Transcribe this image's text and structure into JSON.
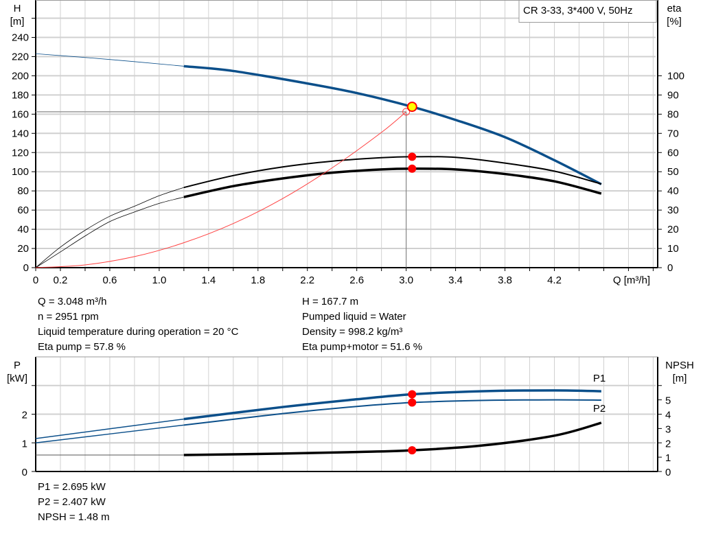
{
  "colors": {
    "head": "#0b4f8a",
    "eta": "#000000",
    "system": "#ff4040",
    "marker": "#ff0000",
    "duty_point_fill": "#ffff00",
    "grid": "#d0d0d0",
    "power": "#0b4f8a",
    "npsh": "#000000"
  },
  "chart_data": [
    {
      "type": "line",
      "legend_box": "CR 3-33, 3*400 V, 50Hz",
      "legend_placement": "top-right",
      "grid": true,
      "xlabel": "Q [m³/h]",
      "xlim": [
        0,
        5.02
      ],
      "x_ticks": [
        "0",
        "0.2",
        "0.6",
        "1.0",
        "1.4",
        "1.8",
        "2.2",
        "2.6",
        "3.0",
        "3.4",
        "3.8",
        "4.2"
      ],
      "y_left": {
        "label": "H",
        "unit": "[m]",
        "lim": [
          0,
          279
        ],
        "ticks": [
          "0",
          "20",
          "40",
          "60",
          "80",
          "100",
          "120",
          "140",
          "160",
          "180",
          "200",
          "220",
          "240"
        ]
      },
      "y_right": {
        "label": "eta",
        "unit": "[%]",
        "lim": [
          0,
          139.5
        ],
        "ticks": [
          "0",
          "10",
          "20",
          "30",
          "40",
          "50",
          "60",
          "70",
          "80",
          "90",
          "100"
        ]
      },
      "series": [
        {
          "key": "H",
          "axis": "left",
          "points": [
            [
              0,
              223
            ],
            [
              0.6,
              217
            ],
            [
              1.2,
              210
            ],
            [
              1.6,
              205
            ],
            [
              2.2,
              192
            ],
            [
              2.6,
              182
            ],
            [
              3.048,
              167.7
            ],
            [
              3.4,
              154
            ],
            [
              3.8,
              136
            ],
            [
              4.2,
              112
            ],
            [
              4.58,
              87
            ]
          ]
        },
        {
          "key": "eta_pump",
          "axis": "right",
          "points": [
            [
              0,
              0
            ],
            [
              0.2,
              10.7
            ],
            [
              0.4,
              19.5
            ],
            [
              0.6,
              26.8
            ],
            [
              0.8,
              32
            ],
            [
              1.0,
              37.5
            ],
            [
              1.2,
              41.8
            ],
            [
              1.6,
              48
            ],
            [
              2.0,
              52.5
            ],
            [
              2.4,
              55.5
            ],
            [
              2.8,
              57.3
            ],
            [
              3.048,
              57.8
            ],
            [
              3.4,
              57.5
            ],
            [
              3.8,
              54.5
            ],
            [
              4.2,
              50.3
            ],
            [
              4.58,
              43.6
            ]
          ]
        },
        {
          "key": "eta_pump_motor",
          "axis": "right",
          "points": [
            [
              0,
              0
            ],
            [
              0.2,
              8.2
            ],
            [
              0.4,
              16.5
            ],
            [
              0.6,
              24
            ],
            [
              0.8,
              29
            ],
            [
              1.0,
              33.5
            ],
            [
              1.2,
              36.8
            ],
            [
              1.6,
              42.5
            ],
            [
              2.0,
              46.5
            ],
            [
              2.4,
              49.5
            ],
            [
              2.8,
              51.2
            ],
            [
              3.048,
              51.6
            ],
            [
              3.4,
              51.2
            ],
            [
              3.8,
              48.8
            ],
            [
              4.2,
              45
            ],
            [
              4.58,
              38.6
            ]
          ]
        },
        {
          "key": "system",
          "axis": "left",
          "points": [
            [
              0,
              0
            ],
            [
              0.4,
              2.9
            ],
            [
              0.8,
              11.5
            ],
            [
              1.2,
              26
            ],
            [
              1.6,
              46
            ],
            [
              2.0,
              72
            ],
            [
              2.4,
              104
            ],
            [
              2.8,
              141
            ],
            [
              3.0,
              162.5
            ]
          ]
        }
      ],
      "duty_point": {
        "q": 3.048,
        "h": 167.7,
        "eta_pump": 57.8,
        "eta_pump_motor": 51.6
      },
      "requested_point": {
        "q": 3.0,
        "h": 162.5
      }
    },
    {
      "type": "line",
      "grid": true,
      "xlim": [
        0,
        5.02
      ],
      "y_left": {
        "label": "P",
        "unit": "[kW]",
        "lim": [
          0,
          4
        ],
        "ticks": [
          "0",
          "1",
          "2"
        ]
      },
      "y_right": {
        "label": "NPSH",
        "unit": "[m]",
        "lim": [
          0,
          8
        ],
        "ticks": [
          "0",
          "1",
          "2",
          "3",
          "4",
          "5"
        ]
      },
      "series": [
        {
          "key": "P1",
          "name": "P1",
          "axis": "left",
          "points": [
            [
              0,
              1.15
            ],
            [
              1.2,
              1.83
            ],
            [
              2.0,
              2.25
            ],
            [
              2.6,
              2.52
            ],
            [
              3.048,
              2.695
            ],
            [
              3.6,
              2.8
            ],
            [
              4.2,
              2.83
            ],
            [
              4.58,
              2.8
            ]
          ]
        },
        {
          "key": "P2",
          "name": "P2",
          "axis": "left",
          "points": [
            [
              0,
              1.0
            ],
            [
              1.2,
              1.62
            ],
            [
              2.0,
              2.02
            ],
            [
              2.6,
              2.27
            ],
            [
              3.048,
              2.407
            ],
            [
              3.6,
              2.48
            ],
            [
              4.2,
              2.5
            ],
            [
              4.58,
              2.49
            ]
          ]
        },
        {
          "key": "NPSH",
          "axis": "right",
          "points": [
            [
              0,
              1.15
            ],
            [
              1.2,
              1.15
            ],
            [
              2.0,
              1.25
            ],
            [
              2.6,
              1.36
            ],
            [
              3.048,
              1.48
            ],
            [
              3.6,
              1.8
            ],
            [
              4.2,
              2.5
            ],
            [
              4.58,
              3.4
            ]
          ]
        }
      ],
      "duty_point": {
        "q": 3.048,
        "p1": 2.695,
        "p2": 2.407,
        "npsh": 1.48
      }
    }
  ],
  "info_top_left": [
    "Q = 3.048 m³/h",
    "n = 2951 rpm",
    "Liquid temperature during operation = 20 °C",
    "Eta pump = 57.8 %"
  ],
  "info_top_right": [
    "H = 167.7 m",
    "Pumped liquid = Water",
    "Density = 998.2 kg/m³",
    "Eta pump+motor = 51.6 %"
  ],
  "info_bottom": [
    "P1 = 2.695 kW",
    "P2 = 2.407 kW",
    "NPSH = 1.48 m"
  ]
}
